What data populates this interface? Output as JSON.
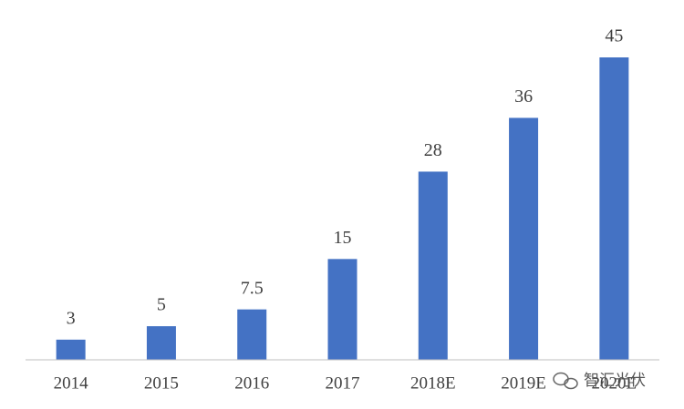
{
  "chart_data": {
    "type": "bar",
    "categories": [
      "2014",
      "2015",
      "2016",
      "2017",
      "2018E",
      "2019E",
      "2020E"
    ],
    "values": [
      3,
      5,
      7.5,
      15,
      28,
      36,
      45
    ],
    "color": "#4472c4",
    "watermark": "智汇光伏"
  }
}
